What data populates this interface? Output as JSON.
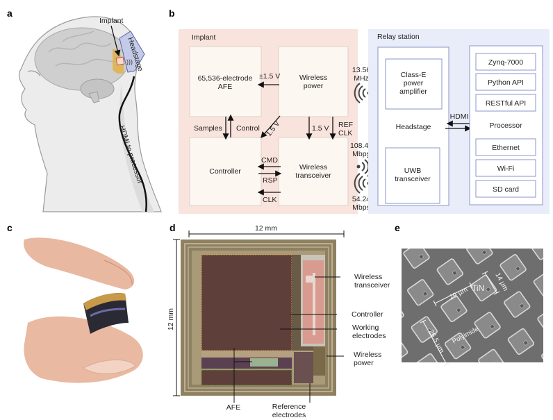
{
  "panels": {
    "a": {
      "label": "a",
      "implant": "Implant",
      "headstage": "Headstage",
      "cable": "HDMI to processor"
    },
    "b": {
      "label": "b",
      "implant_group": {
        "title": "Implant",
        "afe": [
          "65,536-electrode",
          "AFE"
        ],
        "wireless_power": [
          "Wireless",
          "power"
        ],
        "controller": "Controller",
        "wireless_transceiver": [
          "Wireless",
          "transceiver"
        ],
        "signals": {
          "pm15v": "±1.5 V",
          "samples": "Samples",
          "control": "Control",
          "diag_15v": "1.5 V",
          "v15": "1.5 V",
          "ref_clk": [
            "REF",
            "CLK"
          ],
          "cmd": "CMD",
          "rsp": "RSP",
          "clk": "CLK"
        }
      },
      "links": {
        "power_freq": [
          "13.56",
          "MHz"
        ],
        "uplink": [
          "108.48",
          "Mbps"
        ],
        "downlink": [
          "54.24",
          "Mbps"
        ]
      },
      "relay_group": {
        "title": "Relay station",
        "headstage": "Headstage",
        "class_e": [
          "Class-E",
          "power",
          "amplifier"
        ],
        "uwb": [
          "UWB",
          "transceiver"
        ],
        "hdmi": "HDMI",
        "processor": "Processor",
        "processor_items": [
          "Zynq-7000",
          "Python API",
          "RESTful API",
          "Ethernet",
          "Wi-Fi",
          "SD card"
        ]
      }
    },
    "c": {
      "label": "c"
    },
    "d": {
      "label": "d",
      "width": "12 mm",
      "height": "12 mm",
      "callouts": {
        "wireless_transceiver": [
          "Wireless",
          "transceiver"
        ],
        "controller": "Controller",
        "working_electrodes": [
          "Working",
          "electrodes"
        ],
        "wireless_power": [
          "Wireless",
          "power"
        ],
        "afe": "AFE",
        "reference_electrodes": [
          "Reference",
          "electrodes"
        ]
      }
    },
    "e": {
      "label": "e",
      "pitch": "29 µm",
      "size": "14 µm",
      "row_pitch": "26.5 µm",
      "material_pad": "TiN",
      "material_substrate": "Polyimide"
    }
  },
  "colors": {
    "implant_bg": "#f9e3dd",
    "relay_bg": "#e9edf9",
    "relay_border": "#8a94c8",
    "headstage_fill": "#c4cbe8",
    "implant_highlight": "#e0b24a"
  }
}
